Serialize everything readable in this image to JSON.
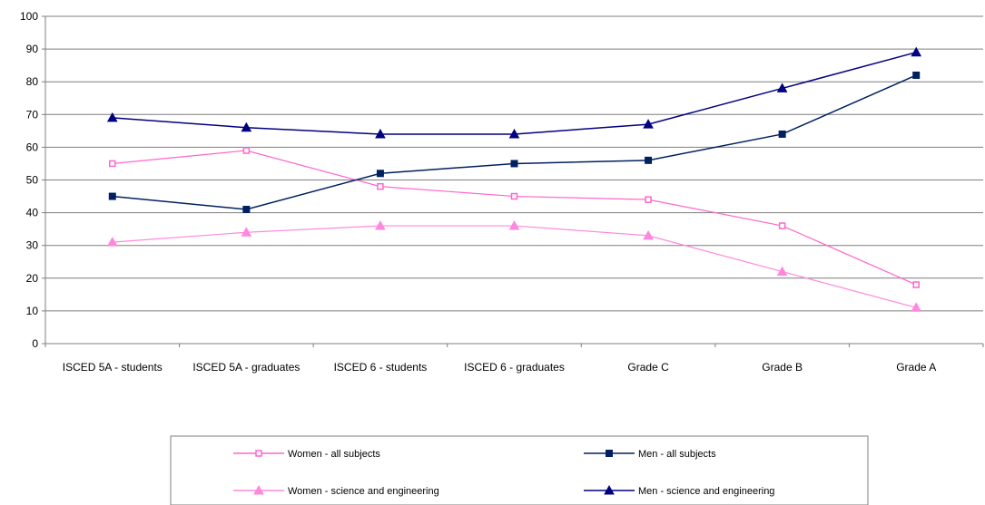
{
  "chart_data": {
    "type": "line",
    "categories": [
      "ISCED 5A - students",
      "ISCED 5A - graduates",
      "ISCED 6 - students",
      "ISCED 6 - graduates",
      "Grade C",
      "Grade B",
      "Grade A"
    ],
    "ylim": [
      0,
      100
    ],
    "yticks": [
      0,
      10,
      20,
      30,
      40,
      50,
      60,
      70,
      80,
      90,
      100
    ],
    "grid": true,
    "legend_position": "bottom",
    "series": [
      {
        "name": "Women - all subjects",
        "values": [
          55,
          59,
          48,
          45,
          44,
          36,
          18
        ],
        "color": "#ff66cc",
        "marker": "open-square"
      },
      {
        "name": "Men - all subjects",
        "values": [
          45,
          41,
          52,
          55,
          56,
          64,
          82
        ],
        "color": "#002060",
        "marker": "filled-square"
      },
      {
        "name": "Women - science and engineering",
        "values": [
          31,
          34,
          36,
          36,
          33,
          22,
          11
        ],
        "color": "#ff88dd",
        "marker": "triangle"
      },
      {
        "name": "Men - science and engineering",
        "values": [
          69,
          66,
          64,
          64,
          67,
          78,
          89
        ],
        "color": "#000080",
        "marker": "triangle"
      }
    ]
  }
}
